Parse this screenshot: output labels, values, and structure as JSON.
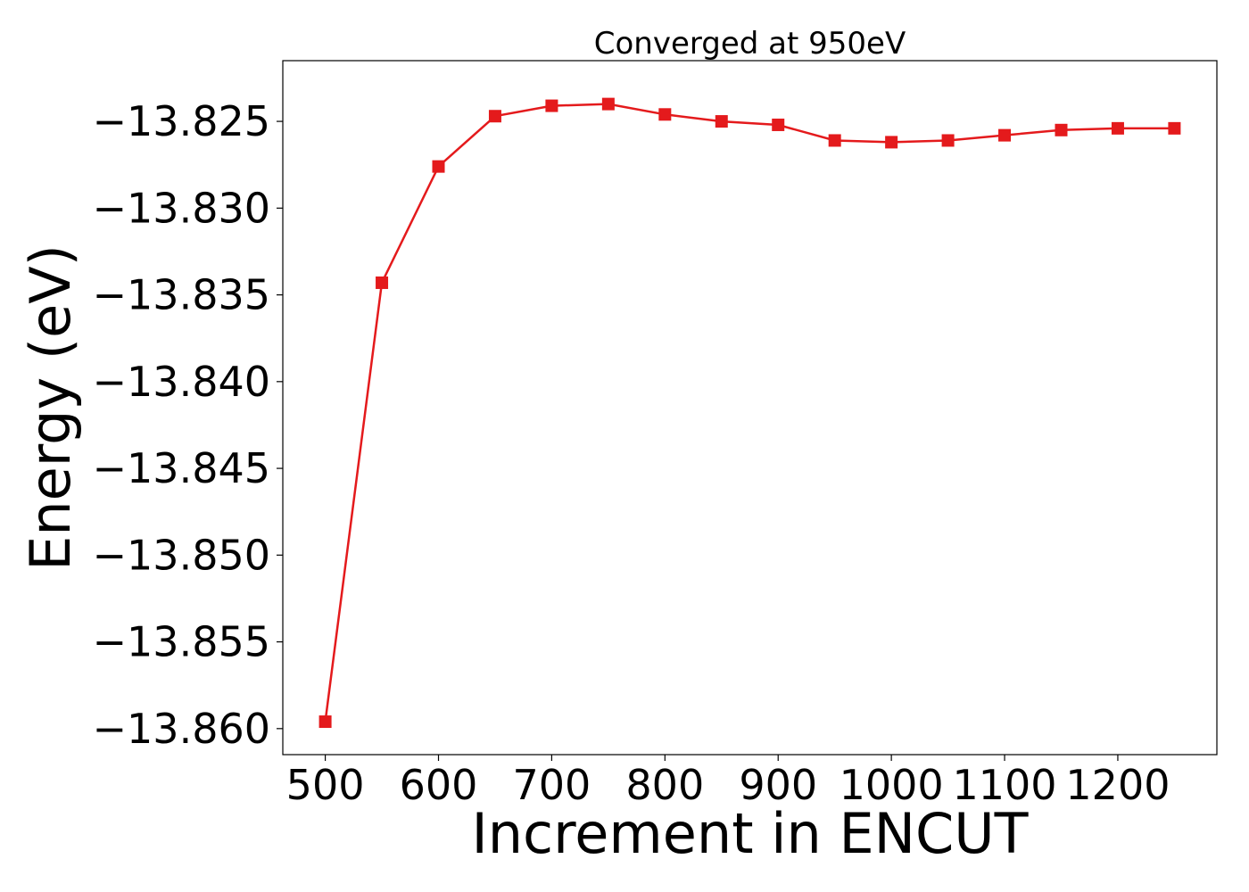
{
  "chart_data": {
    "type": "line",
    "title": "Converged at 950eV",
    "xlabel": "Increment in ENCUT",
    "ylabel": "Energy (eV)",
    "xlim": [
      462.5,
      1287.5
    ],
    "ylim": [
      -13.8615,
      -13.8215
    ],
    "x_ticks": [
      500,
      600,
      700,
      800,
      900,
      1000,
      1100,
      1200
    ],
    "x_tick_labels": [
      "500",
      "600",
      "700",
      "800",
      "900",
      "1000",
      "1100",
      "1200"
    ],
    "y_ticks": [
      -13.825,
      -13.83,
      -13.835,
      -13.84,
      -13.845,
      -13.85,
      -13.855,
      -13.86
    ],
    "y_tick_labels": [
      "−13.825",
      "−13.830",
      "−13.835",
      "−13.840",
      "−13.845",
      "−13.850",
      "−13.855",
      "−13.860"
    ],
    "grid": false,
    "series": [
      {
        "color": "#e41a1c",
        "marker": "square",
        "x": [
          500,
          550,
          600,
          650,
          700,
          750,
          800,
          850,
          900,
          950,
          1000,
          1050,
          1100,
          1150,
          1200,
          1250
        ],
        "y": [
          -13.8596,
          -13.8343,
          -13.8276,
          -13.8247,
          -13.8241,
          -13.824,
          -13.8246,
          -13.825,
          -13.8252,
          -13.8261,
          -13.8262,
          -13.8261,
          -13.8258,
          -13.8255,
          -13.8254,
          -13.8254
        ]
      }
    ]
  }
}
